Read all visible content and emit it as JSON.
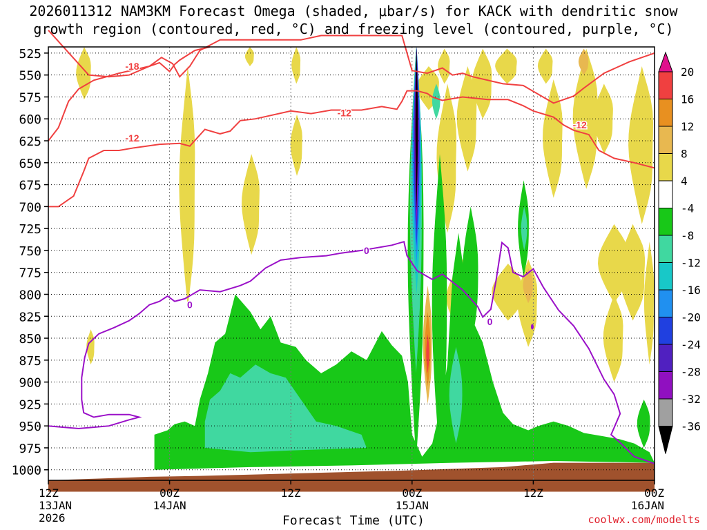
{
  "title": {
    "line1": "2026011312 NAM3KM Forecast Omega (shaded, μbar/s) for KACK with dendritic snow",
    "line2": "growth region (contoured, red, °C) and freezing level (contoured, purple, °C)"
  },
  "xlabel": "Forecast Time (UTC)",
  "credit": "coolwx.com/modelts",
  "colors": {
    "yellow": "#e8d84a",
    "orange_light": "#e8b850",
    "orange": "#e89020",
    "red_contour": "#f04040",
    "purple_contour": "#9a10c8",
    "green": "#18c818",
    "teal": "#40d8a0",
    "cyan": "#18c8c8",
    "blue": "#2090f0",
    "dark_blue": "#2040e0",
    "indigo": "#5020c0",
    "purple": "#9010c0",
    "black": "#000000",
    "ground": "#a0522d"
  },
  "chart_data": {
    "type": "heatmap",
    "x_axis": {
      "ticks": [
        {
          "hours": 0,
          "label": "12Z",
          "sub1": "13JAN",
          "sub2": "2026"
        },
        {
          "hours": 12,
          "label": "00Z",
          "sub1": "14JAN",
          "sub2": ""
        },
        {
          "hours": 24,
          "label": "12Z",
          "sub1": "",
          "sub2": ""
        },
        {
          "hours": 36,
          "label": "00Z",
          "sub1": "15JAN",
          "sub2": ""
        },
        {
          "hours": 48,
          "label": "12Z",
          "sub1": "",
          "sub2": ""
        },
        {
          "hours": 60,
          "label": "00Z",
          "sub1": "16JAN",
          "sub2": ""
        }
      ],
      "range": [
        0,
        60
      ]
    },
    "y_axis": {
      "range": [
        1012,
        518
      ],
      "ticks": [
        525,
        550,
        575,
        600,
        625,
        650,
        675,
        700,
        725,
        750,
        775,
        800,
        825,
        850,
        875,
        900,
        925,
        950,
        975,
        1000
      ]
    },
    "colorbar": {
      "labels": [
        "20",
        "16",
        "12",
        "8",
        "4",
        "-4",
        "-8",
        "-12",
        "-16",
        "-20",
        "-24",
        "-28",
        "-32",
        "-36"
      ],
      "bins": [
        {
          "color": "#e8d84a",
          "from": 4,
          "to": 8
        },
        {
          "color": "#e8b850",
          "from": 8,
          "to": 12
        },
        {
          "color": "#e89020",
          "from": 12,
          "to": 16
        },
        {
          "color": "#f04040",
          "from": 16,
          "to": 20
        },
        {
          "color": "#ffffff",
          "from": -4,
          "to": 4
        },
        {
          "color": "#18c818",
          "from": -8,
          "to": -4
        },
        {
          "color": "#40d8a0",
          "from": -12,
          "to": -8
        },
        {
          "color": "#18c8c8",
          "from": -16,
          "to": -12
        },
        {
          "color": "#2090f0",
          "from": -20,
          "to": -16
        },
        {
          "color": "#2040e0",
          "from": -24,
          "to": -20
        },
        {
          "color": "#5020c0",
          "from": -28,
          "to": -24
        },
        {
          "color": "#9010c0",
          "from": -32,
          "to": -28
        },
        {
          "color": "#a0a0a0",
          "from": -36,
          "to": -32
        }
      ]
    },
    "contour_labels": [
      {
        "text": "-18",
        "color": "red",
        "hours": 8.3,
        "p": 540
      },
      {
        "text": "-12",
        "color": "red",
        "hours": 8.3,
        "p": 622
      },
      {
        "text": "-12",
        "color": "red",
        "hours": 29.3,
        "p": 593
      },
      {
        "text": "-12",
        "color": "red",
        "hours": 52.6,
        "p": 607
      },
      {
        "text": "0",
        "color": "purple",
        "hours": 31.5,
        "p": 750
      },
      {
        "text": "0",
        "color": "purple",
        "hours": 14.0,
        "p": 812
      },
      {
        "text": "0",
        "color": "purple",
        "hours": 43.7,
        "p": 831
      }
    ],
    "series": [
      {
        "kind": "contour",
        "line": "red",
        "label": "-18",
        "points": [
          [
            0.0,
            499
          ],
          [
            4.0,
            550
          ],
          [
            6.0,
            552
          ],
          [
            8.0,
            550
          ],
          [
            10.0,
            540
          ],
          [
            11.2,
            530
          ],
          [
            12.3,
            537
          ],
          [
            13.0,
            552
          ],
          [
            14.0,
            540
          ],
          [
            15.0,
            522
          ],
          [
            17.0,
            510
          ],
          [
            25.0,
            510
          ],
          [
            27.0,
            505
          ],
          [
            35.0,
            505
          ],
          [
            36.0,
            545
          ],
          [
            37.5,
            548
          ],
          [
            39.0,
            542
          ],
          [
            40.0,
            550
          ],
          [
            41.0,
            548
          ],
          [
            42.0,
            552
          ],
          [
            45.0,
            560
          ],
          [
            47.0,
            562
          ],
          [
            50.0,
            582
          ],
          [
            52.0,
            574
          ],
          [
            53.0,
            565
          ],
          [
            55.0,
            548
          ],
          [
            57.5,
            535
          ],
          [
            60.0,
            525
          ]
        ]
      },
      {
        "kind": "contour",
        "line": "red",
        "label": "-12",
        "points": [
          [
            0.0,
            625
          ],
          [
            1.0,
            610
          ],
          [
            2.0,
            580
          ],
          [
            3.0,
            566
          ],
          [
            4.5,
            556
          ],
          [
            7.0,
            548
          ],
          [
            10.0,
            540
          ],
          [
            11.0,
            536
          ],
          [
            12.0,
            546
          ],
          [
            12.5,
            538
          ],
          [
            13.0,
            533
          ],
          [
            14.5,
            522
          ],
          [
            16.0,
            518
          ]
        ]
      },
      {
        "kind": "contour",
        "line": "red",
        "label": "-12",
        "points": [
          [
            0.0,
            700
          ],
          [
            1.0,
            700
          ],
          [
            2.5,
            688
          ],
          [
            3.5,
            660
          ],
          [
            4.0,
            645
          ],
          [
            5.5,
            636
          ],
          [
            7.0,
            636
          ],
          [
            8.5,
            633
          ],
          [
            11.0,
            629
          ],
          [
            13.0,
            628
          ],
          [
            14.0,
            631
          ],
          [
            15.5,
            612
          ],
          [
            17.0,
            617
          ],
          [
            18.0,
            614
          ],
          [
            19.0,
            602
          ],
          [
            20.5,
            600
          ],
          [
            24.0,
            591
          ],
          [
            26.0,
            594
          ],
          [
            28.0,
            590
          ],
          [
            31.0,
            590
          ],
          [
            33.0,
            586
          ],
          [
            34.5,
            589
          ],
          [
            35.0,
            580
          ],
          [
            35.5,
            568
          ],
          [
            36.5,
            568
          ],
          [
            37.5,
            571
          ],
          [
            38.0,
            575
          ],
          [
            39.0,
            579
          ],
          [
            41.0,
            575
          ],
          [
            43.5,
            578
          ],
          [
            45.5,
            578
          ],
          [
            47.0,
            585
          ],
          [
            48.0,
            591
          ],
          [
            50.0,
            598
          ],
          [
            51.0,
            607
          ],
          [
            52.0,
            613
          ],
          [
            53.5,
            618
          ],
          [
            54.5,
            636
          ],
          [
            56.0,
            645
          ],
          [
            58.0,
            650
          ],
          [
            60.0,
            656
          ]
        ]
      },
      {
        "kind": "contour",
        "line": "purple",
        "label": "0",
        "points": [
          [
            0.0,
            950
          ],
          [
            3.0,
            953
          ],
          [
            6.0,
            950
          ],
          [
            8.0,
            943
          ],
          [
            9.0,
            940
          ],
          [
            8.0,
            937
          ],
          [
            6.0,
            937
          ],
          [
            4.5,
            940
          ],
          [
            3.5,
            935
          ],
          [
            3.3,
            920
          ],
          [
            3.3,
            895
          ],
          [
            3.6,
            872
          ],
          [
            4.0,
            856
          ],
          [
            5.0,
            845
          ],
          [
            6.5,
            838
          ],
          [
            8.0,
            830
          ],
          [
            9.0,
            822
          ],
          [
            10.0,
            812
          ],
          [
            11.0,
            808
          ],
          [
            11.8,
            802
          ],
          [
            12.5,
            808
          ],
          [
            13.5,
            805
          ],
          [
            15.0,
            795
          ],
          [
            17.0,
            797
          ],
          [
            19.0,
            790
          ],
          [
            20.0,
            785
          ],
          [
            21.5,
            770
          ],
          [
            23.0,
            761
          ],
          [
            25.0,
            758
          ],
          [
            27.5,
            756
          ],
          [
            29.0,
            753
          ],
          [
            31.0,
            750
          ],
          [
            34.0,
            744
          ],
          [
            35.2,
            740
          ],
          [
            35.5,
            756
          ],
          [
            36.5,
            773
          ],
          [
            38.0,
            783
          ],
          [
            39.0,
            777
          ],
          [
            41.0,
            795
          ],
          [
            42.5,
            814
          ],
          [
            43.0,
            826
          ],
          [
            43.8,
            817
          ],
          [
            44.3,
            785
          ],
          [
            44.9,
            741
          ],
          [
            45.5,
            747
          ],
          [
            46.0,
            775
          ],
          [
            47.0,
            780
          ],
          [
            48.0,
            771
          ],
          [
            49.0,
            792
          ],
          [
            50.5,
            818
          ],
          [
            52.0,
            836
          ],
          [
            53.5,
            862
          ],
          [
            55.0,
            897
          ],
          [
            56.0,
            914
          ],
          [
            56.6,
            936
          ],
          [
            55.7,
            960
          ],
          [
            56.5,
            968
          ],
          [
            58.0,
            985
          ],
          [
            60.0,
            993
          ]
        ]
      },
      {
        "kind": "ground",
        "label": "",
        "points": [
          [
            0.0,
            1012
          ],
          [
            5.0,
            1010
          ],
          [
            10.0,
            1008
          ],
          [
            15.0,
            1007
          ],
          [
            25.0,
            1004
          ],
          [
            35.0,
            1001
          ],
          [
            45.0,
            997
          ],
          [
            50.0,
            992
          ],
          [
            60.0,
            992
          ],
          [
            60.0,
            1025
          ],
          [
            0.0,
            1025
          ]
        ]
      }
    ]
  }
}
